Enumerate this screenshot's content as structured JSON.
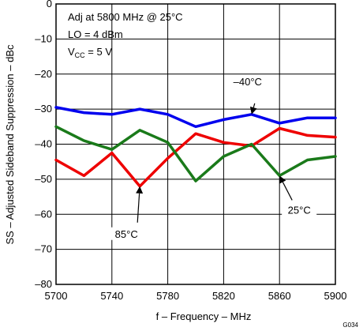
{
  "chart_data": {
    "type": "line",
    "title": "",
    "xlabel": "f – Frequency – MHz",
    "ylabel": "SS – Adjusted Sideband Suppression – dBc",
    "xlim": [
      5700,
      5900
    ],
    "ylim": [
      -80,
      0
    ],
    "xticks": [
      "5700",
      "5740",
      "5780",
      "5820",
      "5860",
      "5900"
    ],
    "yticks": [
      "0",
      "–10",
      "–20",
      "–30",
      "–40",
      "–50",
      "–60",
      "–70",
      "–80"
    ],
    "grid": true,
    "legend": "none",
    "annotations": {
      "line1": "Adj at 5800 MHz @ 25°C",
      "line2": "LO = 4 dBm",
      "line3_prefix": "V",
      "line3_sub": "CC",
      "line3_suffix": " =  5 V"
    },
    "figure_code": "G034",
    "x": [
      5700,
      5720,
      5740,
      5760,
      5780,
      5800,
      5820,
      5840,
      5860,
      5880,
      5900
    ],
    "series": [
      {
        "name": "–40°C",
        "color": "#0000ee",
        "values": [
          -29.5,
          -31,
          -31.5,
          -30,
          -31.5,
          -35,
          -33,
          -31.5,
          -34,
          -32.5,
          -32.5
        ],
        "label_at": [
          5840,
          -31.5
        ]
      },
      {
        "name": "85°C",
        "color": "#ee0000",
        "values": [
          -44.5,
          -49,
          -42.5,
          -52,
          -44,
          -37,
          -39.5,
          -40.5,
          -35.5,
          -37.5,
          -38
        ],
        "label_at": [
          5760,
          -52
        ]
      },
      {
        "name": "25°C",
        "color": "#1a7a1a",
        "values": [
          -35,
          -39,
          -41.5,
          -36,
          -39.5,
          -50.5,
          -43.5,
          -40,
          -49,
          -44.5,
          -43.5
        ],
        "label_at": [
          5860,
          -49
        ]
      }
    ]
  }
}
